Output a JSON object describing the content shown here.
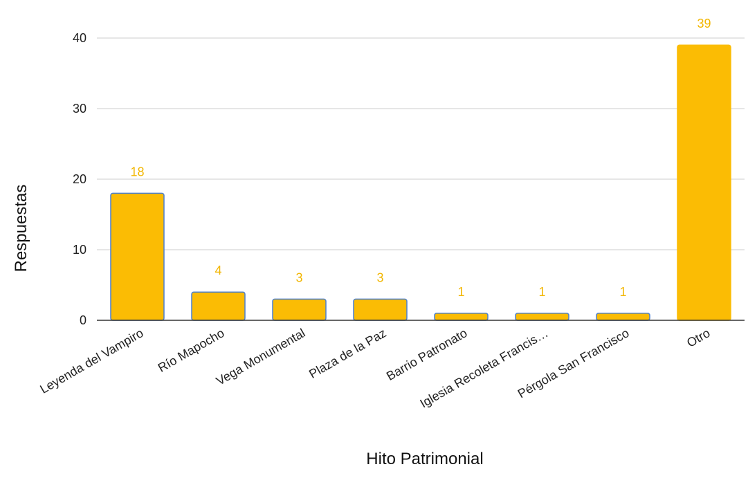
{
  "chart_data": {
    "type": "bar",
    "categories": [
      "Leyenda del Vampiro",
      "Río Mapocho",
      "Vega Monumental",
      "Plaza de la Paz",
      "Barrio Patronato",
      "Iglesia Recoleta Francis…",
      "Pérgola San Francisco",
      "Otro"
    ],
    "values": [
      18,
      4,
      3,
      3,
      1,
      1,
      1,
      39
    ],
    "title": "",
    "xlabel": "Hito Patrimonial",
    "ylabel": "Respuestas",
    "ylim": [
      0,
      40
    ],
    "yticks": [
      0,
      10,
      20,
      30,
      40
    ],
    "grid": true,
    "legend": "none",
    "data_labels": true,
    "colors": {
      "bar_fill": "#FBBC04",
      "bar_stroke": "#4A7FD0",
      "label": "#F2B600",
      "grid": "#CCCCCC",
      "axis": "#333333"
    }
  }
}
